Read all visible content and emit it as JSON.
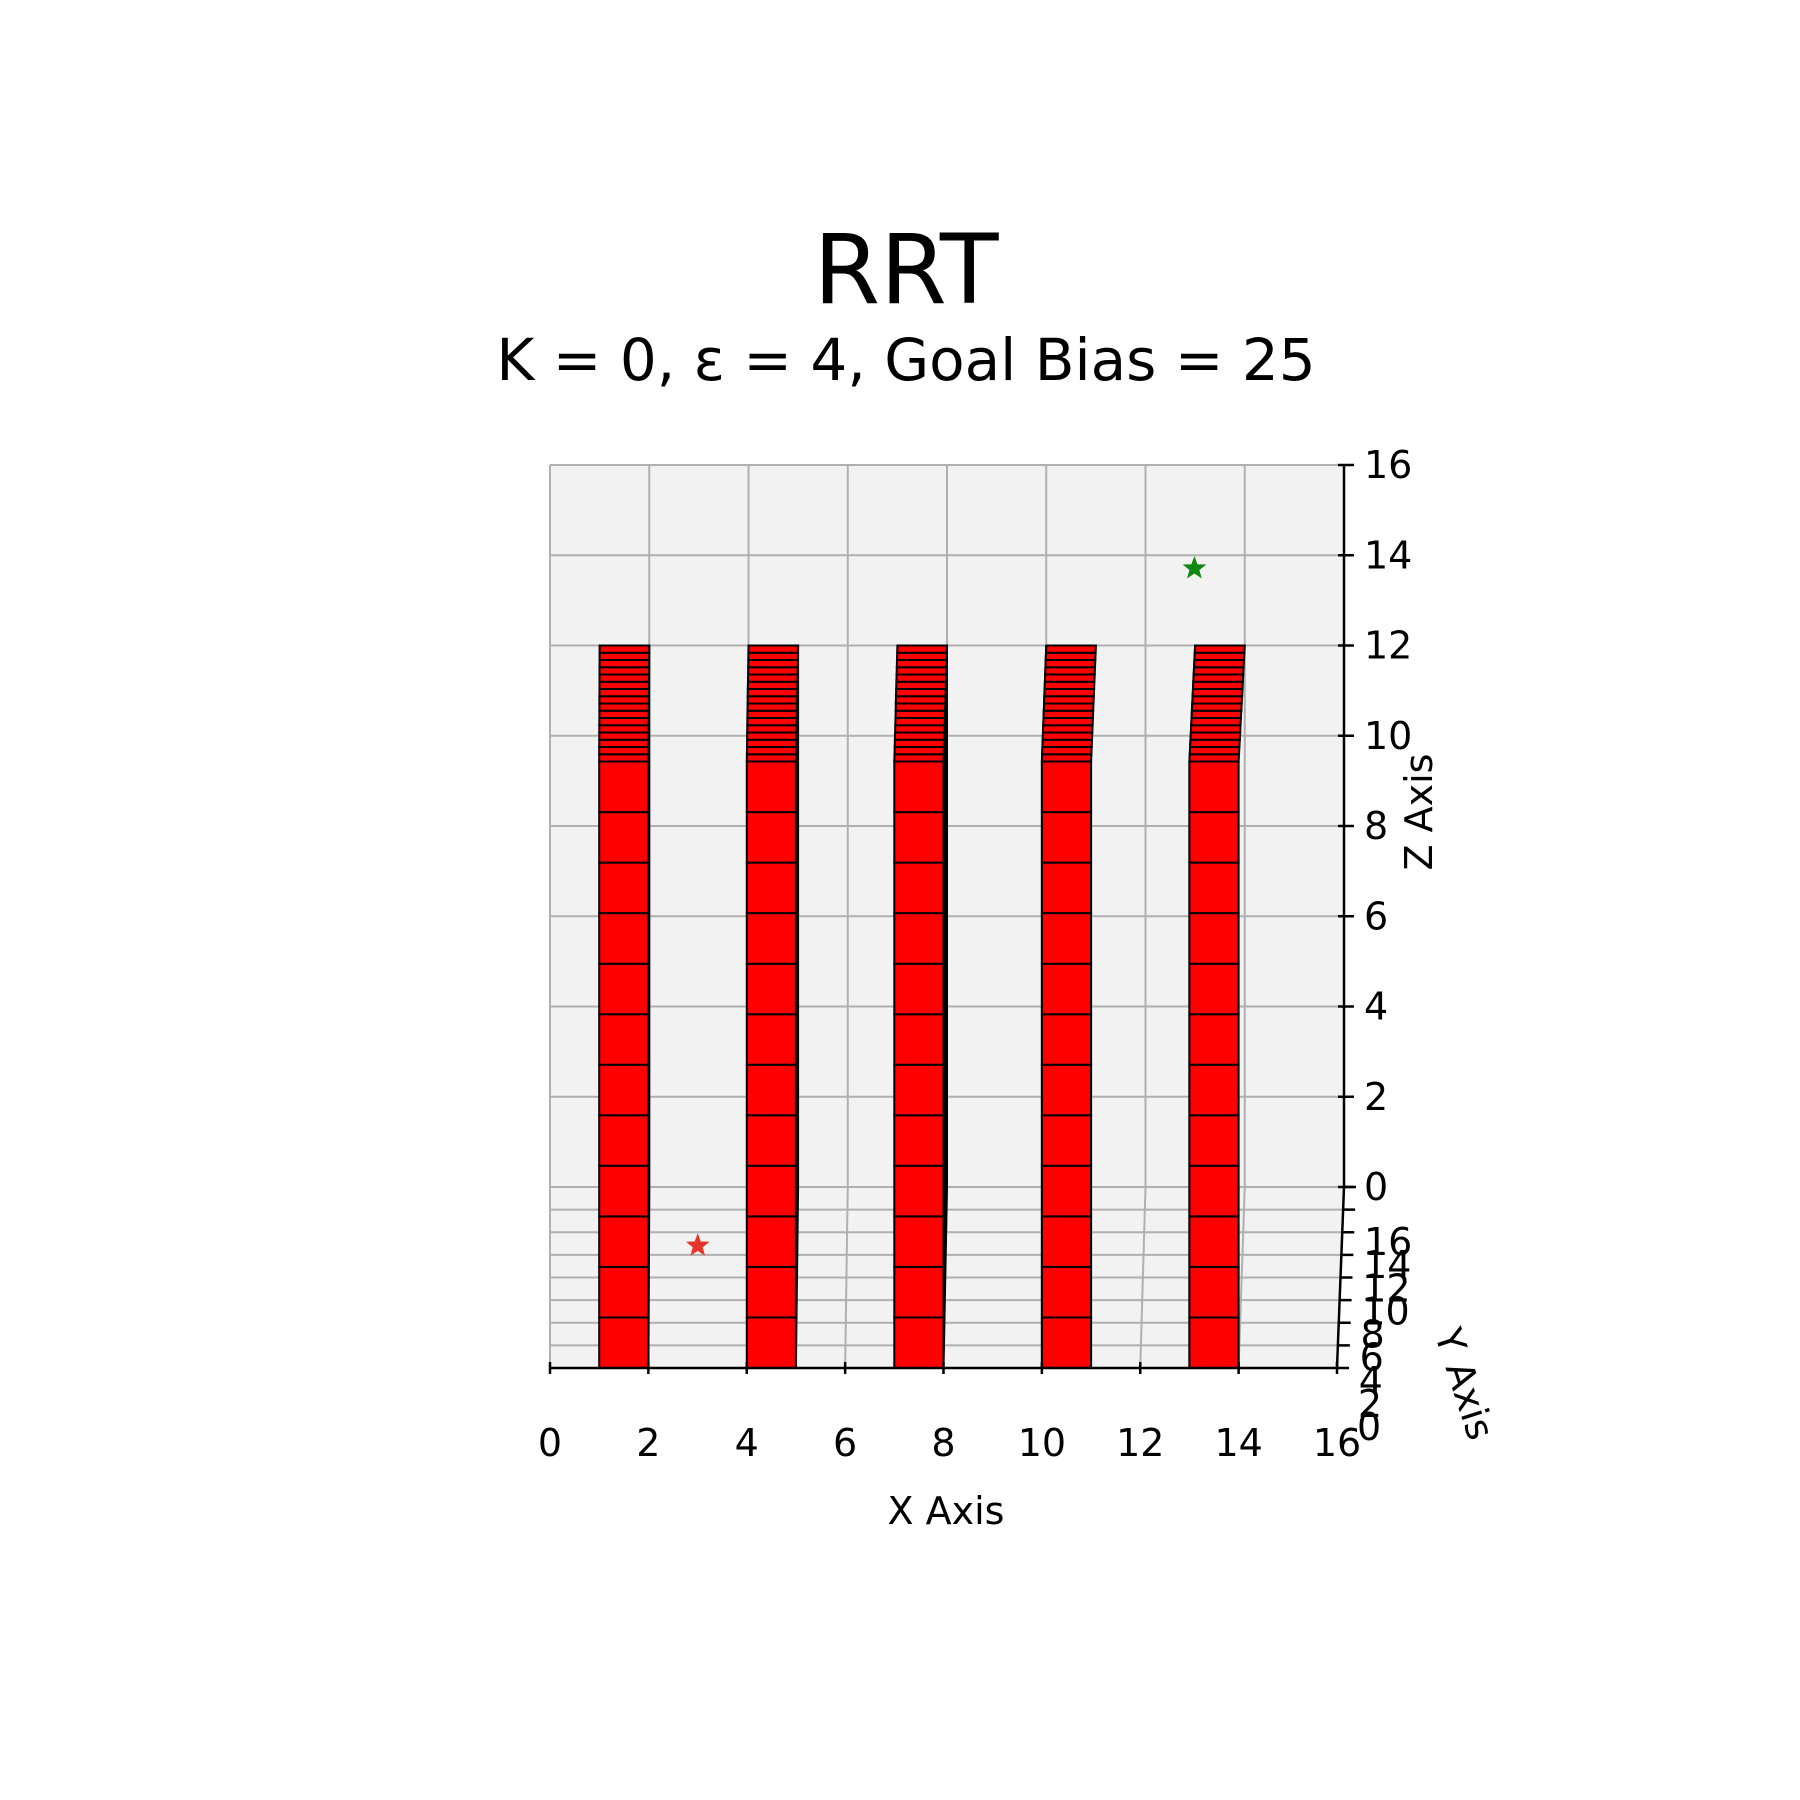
{
  "chart_data": {
    "type": "scatter",
    "title": "RRT",
    "subtitle": "K = 0, ε = 4, Goal Bias = 25",
    "xlabel": "X Axis",
    "ylabel": "Y Axis",
    "zlabel": "Z Axis",
    "xlim": [
      0,
      16
    ],
    "ylim": [
      0,
      16
    ],
    "zlim": [
      0,
      16
    ],
    "x_ticks": [
      "0",
      "2",
      "4",
      "6",
      "8",
      "10",
      "12",
      "14",
      "16"
    ],
    "y_ticks": [
      "0",
      "2",
      "4",
      "6",
      "8",
      "10",
      "12",
      "14",
      "16"
    ],
    "z_ticks": [
      "0",
      "2",
      "4",
      "6",
      "8",
      "10",
      "12",
      "14",
      "16"
    ],
    "grid": true,
    "obstacles": [
      {
        "x": [
          1,
          2
        ],
        "y": [
          0,
          16
        ],
        "z": [
          0,
          12
        ]
      },
      {
        "x": [
          4,
          5
        ],
        "y": [
          0,
          16
        ],
        "z": [
          0,
          12
        ]
      },
      {
        "x": [
          7,
          8
        ],
        "y": [
          0,
          16
        ],
        "z": [
          0,
          12
        ]
      },
      {
        "x": [
          10,
          11
        ],
        "y": [
          0,
          16
        ],
        "z": [
          0,
          12
        ]
      },
      {
        "x": [
          13,
          14
        ],
        "y": [
          0,
          16
        ],
        "z": [
          0,
          12
        ]
      }
    ],
    "obstacle_color": "#ff0000",
    "points": [
      {
        "role": "start",
        "x": 3,
        "y": 2,
        "z": 2,
        "color": "#e8352a"
      },
      {
        "role": "goal",
        "x": 13,
        "y": 14,
        "z": 14,
        "color": "#118811"
      }
    ]
  }
}
